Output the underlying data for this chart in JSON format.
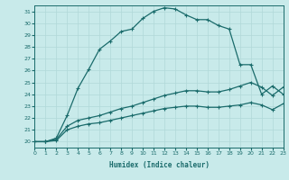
{
  "xlabel": "Humidex (Indice chaleur)",
  "bg_color": "#c8eaea",
  "line_color": "#1a6b6b",
  "grid_color": "#b0d8d8",
  "xlim": [
    0,
    23
  ],
  "ylim": [
    19.5,
    31.5
  ],
  "xticks": [
    0,
    1,
    2,
    3,
    4,
    5,
    6,
    7,
    8,
    9,
    10,
    11,
    12,
    13,
    14,
    15,
    16,
    17,
    18,
    19,
    20,
    21,
    22,
    23
  ],
  "yticks": [
    20,
    21,
    22,
    23,
    24,
    25,
    26,
    27,
    28,
    29,
    30,
    31
  ],
  "line1_x": [
    0,
    1,
    2,
    3,
    4,
    5,
    6,
    7,
    8,
    9,
    10,
    11,
    12,
    13,
    14,
    15,
    16,
    17,
    18,
    19,
    20,
    21,
    22,
    23
  ],
  "line1_y": [
    20.0,
    20.0,
    20.1,
    21.0,
    21.3,
    21.5,
    21.6,
    21.8,
    22.0,
    22.2,
    22.4,
    22.6,
    22.8,
    22.9,
    23.0,
    23.0,
    22.9,
    22.9,
    23.0,
    23.1,
    23.3,
    23.1,
    22.7,
    23.2
  ],
  "line2_x": [
    0,
    1,
    2,
    3,
    4,
    5,
    6,
    7,
    8,
    9,
    10,
    11,
    12,
    13,
    14,
    15,
    16,
    17,
    18,
    19,
    20,
    21,
    22,
    23
  ],
  "line2_y": [
    20.0,
    20.0,
    20.2,
    21.3,
    21.8,
    22.0,
    22.2,
    22.5,
    22.8,
    23.0,
    23.3,
    23.6,
    23.9,
    24.1,
    24.3,
    24.3,
    24.2,
    24.2,
    24.4,
    24.7,
    25.0,
    24.6,
    23.9,
    24.6
  ],
  "line3_x": [
    0,
    1,
    2,
    3,
    4,
    5,
    6,
    7,
    8,
    9,
    10,
    11,
    12,
    13,
    14,
    15,
    16,
    17,
    18,
    19,
    20,
    21,
    22,
    23
  ],
  "line3_y": [
    20.0,
    20.0,
    20.3,
    22.2,
    24.5,
    26.1,
    27.8,
    28.5,
    29.3,
    29.5,
    30.4,
    31.0,
    31.3,
    31.2,
    30.7,
    30.3,
    30.3,
    29.8,
    29.5,
    26.5,
    26.5,
    24.0,
    24.7,
    24.0
  ]
}
